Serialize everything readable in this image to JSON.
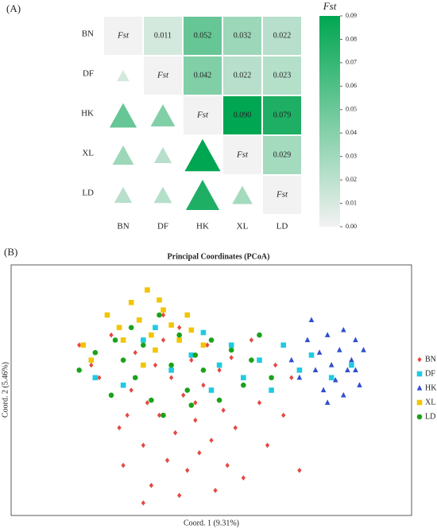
{
  "chart_data": [
    {
      "type": "heatmap",
      "panel": "(A)",
      "categories": [
        "BN",
        "DF",
        "HK",
        "XL",
        "LD"
      ],
      "values": [
        [
          null,
          0.011,
          0.052,
          0.032,
          0.022
        ],
        [
          null,
          null,
          0.042,
          0.022,
          0.023
        ],
        [
          null,
          null,
          null,
          0.09,
          0.079
        ],
        [
          null,
          null,
          null,
          null,
          0.029
        ],
        [
          null,
          null,
          null,
          null,
          null
        ]
      ],
      "value_labels": [
        [
          null,
          "0.011",
          "0.052",
          "0.032",
          "0.022"
        ],
        [
          null,
          null,
          "0.042",
          "0.022",
          "0.023"
        ],
        [
          null,
          null,
          null,
          "0.090",
          "0.079"
        ],
        [
          null,
          null,
          null,
          null,
          "0.029"
        ],
        [
          null,
          null,
          null,
          null,
          null
        ]
      ],
      "diagonal_label": "Fst",
      "colorbar_title": "Fst",
      "zlim": [
        0,
        0.09
      ],
      "zticks": [
        {
          "value": 0,
          "label": "0.00"
        },
        0.01,
        0.02,
        0.03,
        0.04,
        0.05,
        0.06,
        0.07,
        0.08,
        0.09
      ],
      "color_low": "#f2f2f2",
      "color_high": "#00a651"
    },
    {
      "type": "scatter",
      "panel": "(B)",
      "title": "Principal Coordinates (PCoA)",
      "xlabel": "Coord. 1  (9.31%)",
      "ylabel": "Coord. 2  (5.46%)",
      "xlim": [
        0,
        100
      ],
      "ylim": [
        0,
        100
      ],
      "legend": "right",
      "series": [
        {
          "name": "BN",
          "color": "#e8473e",
          "marker": "diamond",
          "x": [
            17,
            20,
            22,
            25,
            27,
            28,
            30,
            31,
            33,
            34,
            35,
            36,
            37,
            38,
            39,
            40,
            41,
            42,
            43,
            44,
            45,
            46,
            47,
            48,
            49,
            50,
            51,
            52,
            53,
            54,
            55,
            56,
            58,
            60,
            62,
            64,
            66,
            68,
            70,
            72,
            33,
            42,
            38,
            46,
            29
          ],
          "y": [
            68,
            60,
            55,
            72,
            35,
            20,
            50,
            65,
            28,
            45,
            12,
            60,
            40,
            70,
            22,
            55,
            33,
            75,
            48,
            18,
            62,
            38,
            25,
            52,
            68,
            30,
            10,
            58,
            42,
            20,
            63,
            35,
            15,
            70,
            45,
            28,
            60,
            40,
            55,
            18,
            5,
            8,
            80,
            45,
            40
          ]
        },
        {
          "name": "DF",
          "color": "#1ecbe1",
          "marker": "square",
          "x": [
            21,
            28,
            33,
            40,
            45,
            48,
            52,
            55,
            58,
            62,
            65,
            68,
            72,
            75,
            80,
            85,
            36,
            50
          ],
          "y": [
            55,
            52,
            70,
            58,
            64,
            73,
            60,
            68,
            55,
            62,
            50,
            68,
            58,
            64,
            55,
            60,
            75,
            50
          ]
        },
        {
          "name": "HK",
          "color": "#2f4fcf",
          "marker": "triangle",
          "x": [
            70,
            72,
            74,
            76,
            77,
            78,
            79,
            80,
            81,
            82,
            83,
            84,
            85,
            86,
            87,
            88,
            75,
            79,
            83,
            86
          ],
          "y": [
            62,
            55,
            70,
            58,
            65,
            50,
            72,
            60,
            54,
            66,
            74,
            58,
            62,
            70,
            52,
            66,
            78,
            45,
            48,
            58
          ]
        },
        {
          "name": "XL",
          "color": "#f2c500",
          "marker": "square",
          "x": [
            18,
            20,
            24,
            27,
            28,
            30,
            32,
            34,
            35,
            36,
            38,
            40,
            42,
            44,
            45,
            48,
            33,
            37
          ],
          "y": [
            68,
            62,
            80,
            75,
            70,
            85,
            78,
            90,
            72,
            66,
            82,
            76,
            70,
            80,
            74,
            68,
            60,
            86
          ]
        },
        {
          "name": "LD",
          "color": "#1aa31a",
          "marker": "circle",
          "x": [
            17,
            21,
            25,
            26,
            28,
            30,
            31,
            33,
            35,
            37,
            40,
            42,
            44,
            46,
            48,
            50,
            52,
            55,
            58,
            60,
            62,
            65,
            38,
            45
          ],
          "y": [
            58,
            65,
            48,
            70,
            62,
            75,
            55,
            68,
            46,
            80,
            60,
            72,
            50,
            64,
            58,
            70,
            46,
            66,
            52,
            62,
            72,
            55,
            40,
            44
          ]
        }
      ]
    }
  ]
}
